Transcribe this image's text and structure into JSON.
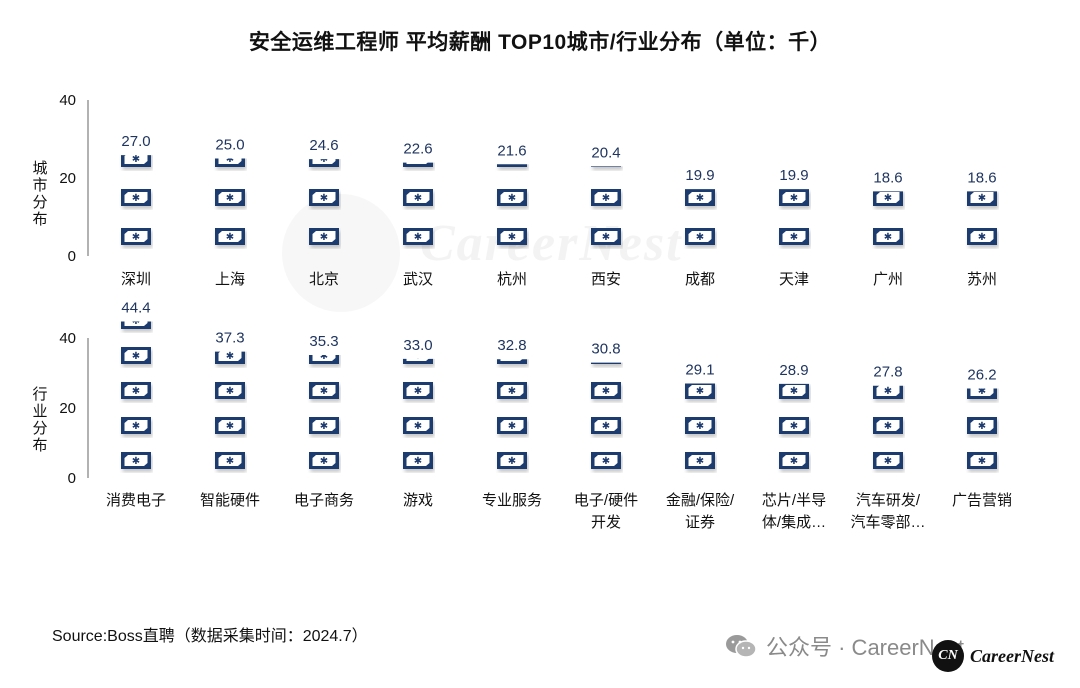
{
  "title": "安全运维工程师 平均薪酬 TOP10城市/行业分布（单位：千）",
  "source": "Source:Boss直聘（数据采集时间：2024.7）",
  "footer": {
    "wechat_text": "公众号 · CareerNest",
    "logo_mark": "CN",
    "logo_text": "CareerNest"
  },
  "watermark": "CareerNest",
  "colors": {
    "icon_fill": "#1f3a6e",
    "icon_bg": "#ffffff",
    "text": "#111111",
    "value_text": "#1f3560"
  },
  "chart_data": [
    {
      "type": "bar",
      "style": "pictograph",
      "ylabel": "城市分布",
      "ylim": [
        0,
        40
      ],
      "yticks": [
        0,
        20,
        40
      ],
      "unit_per_icon": 10,
      "categories": [
        "深圳",
        "上海",
        "北京",
        "武汉",
        "杭州",
        "西安",
        "成都",
        "天津",
        "广州",
        "苏州"
      ],
      "category_lines": [
        [
          "深圳"
        ],
        [
          "上海"
        ],
        [
          "北京"
        ],
        [
          "武汉"
        ],
        [
          "杭州"
        ],
        [
          "西安"
        ],
        [
          "成都"
        ],
        [
          "天津"
        ],
        [
          "广州"
        ],
        [
          "苏州"
        ]
      ],
      "values": [
        27.0,
        25.0,
        24.6,
        22.6,
        21.6,
        20.4,
        19.9,
        19.9,
        18.6,
        18.6
      ],
      "value_labels": [
        "27.0",
        "25.0",
        "24.6",
        "22.6",
        "21.6",
        "20.4",
        "19.9",
        "19.9",
        "18.6",
        "18.6"
      ]
    },
    {
      "type": "bar",
      "style": "pictograph",
      "ylabel": "行业分布",
      "ylim": [
        0,
        40
      ],
      "yticks": [
        0,
        20,
        40
      ],
      "unit_per_icon": 10,
      "categories": [
        "消费电子",
        "智能硬件",
        "电子商务",
        "游戏",
        "专业服务",
        "电子/硬件开发",
        "金融/保险/证券",
        "芯片/半导体/集成…",
        "汽车研发/汽车零部…",
        "广告营销"
      ],
      "category_lines": [
        [
          "消费电子"
        ],
        [
          "智能硬件"
        ],
        [
          "电子商务"
        ],
        [
          "游戏"
        ],
        [
          "专业服务"
        ],
        [
          "电子/硬件",
          "开发"
        ],
        [
          "金融/保险/",
          "证券"
        ],
        [
          "芯片/半导",
          "体/集成…"
        ],
        [
          "汽车研发/",
          "汽车零部…"
        ],
        [
          "广告营销"
        ]
      ],
      "values": [
        44.4,
        37.3,
        35.3,
        33.0,
        32.8,
        30.8,
        29.1,
        28.9,
        27.8,
        26.2
      ],
      "value_labels": [
        "44.4",
        "37.3",
        "35.3",
        "33.0",
        "32.8",
        "30.8",
        "29.1",
        "28.9",
        "27.8",
        "26.2"
      ]
    }
  ]
}
